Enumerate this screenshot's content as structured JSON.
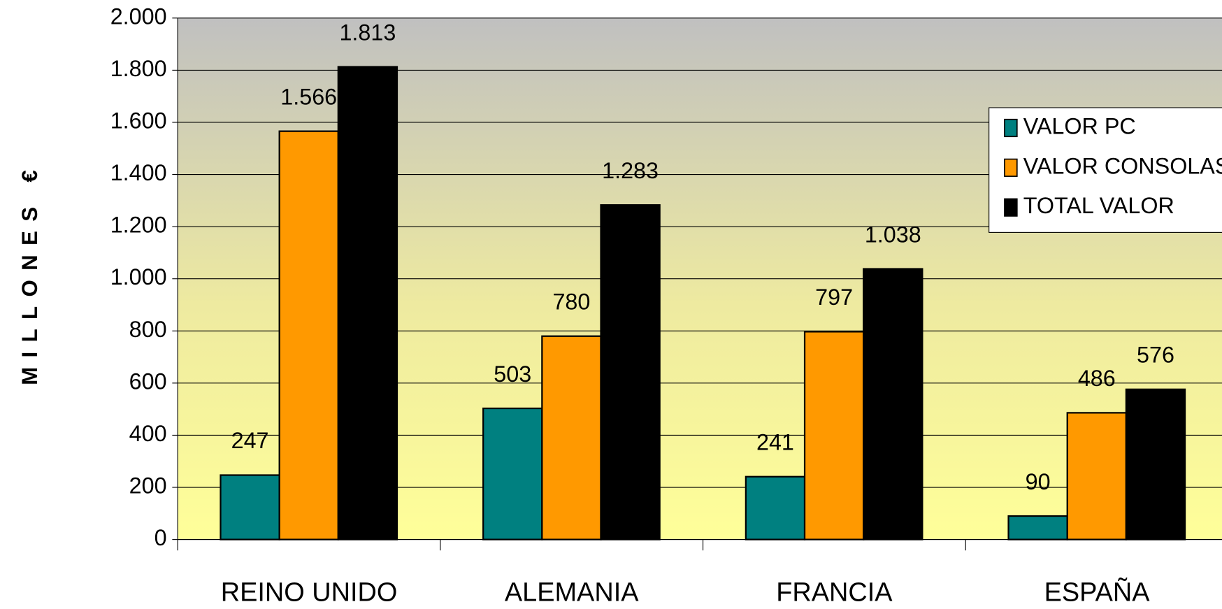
{
  "chart_data": {
    "type": "bar",
    "y_label": "MILLONES €",
    "categories": [
      "REINO UNIDO",
      "ALEMANIA",
      "FRANCIA",
      "ESPAÑA"
    ],
    "series": [
      {
        "name": "VALOR PC",
        "color": "#008080",
        "values": [
          247,
          503,
          241,
          90
        ],
        "value_labels": [
          "247",
          "503",
          "241",
          "90"
        ]
      },
      {
        "name": "VALOR CONSOLAS",
        "color": "#ff9900",
        "values": [
          1566,
          780,
          797,
          486
        ],
        "value_labels": [
          "1.566",
          "780",
          "797",
          "486"
        ]
      },
      {
        "name": "TOTAL VALOR",
        "color": "#000000",
        "values": [
          1813,
          1283,
          1038,
          576
        ],
        "value_labels": [
          "1.813",
          "1.283",
          "1.038",
          "576"
        ]
      }
    ],
    "ylim": [
      0,
      2000
    ],
    "yticks": [
      {
        "value": 0,
        "label": "0"
      },
      {
        "value": 200,
        "label": "200"
      },
      {
        "value": 400,
        "label": "400"
      },
      {
        "value": 600,
        "label": "600"
      },
      {
        "value": 800,
        "label": "800"
      },
      {
        "value": 1000,
        "label": "1.000"
      },
      {
        "value": 1200,
        "label": "1.200"
      },
      {
        "value": 1400,
        "label": "1.400"
      },
      {
        "value": 1600,
        "label": "1.600"
      },
      {
        "value": 1800,
        "label": "1.800"
      },
      {
        "value": 2000,
        "label": "2.000"
      }
    ],
    "grid": true,
    "legend": "right"
  }
}
